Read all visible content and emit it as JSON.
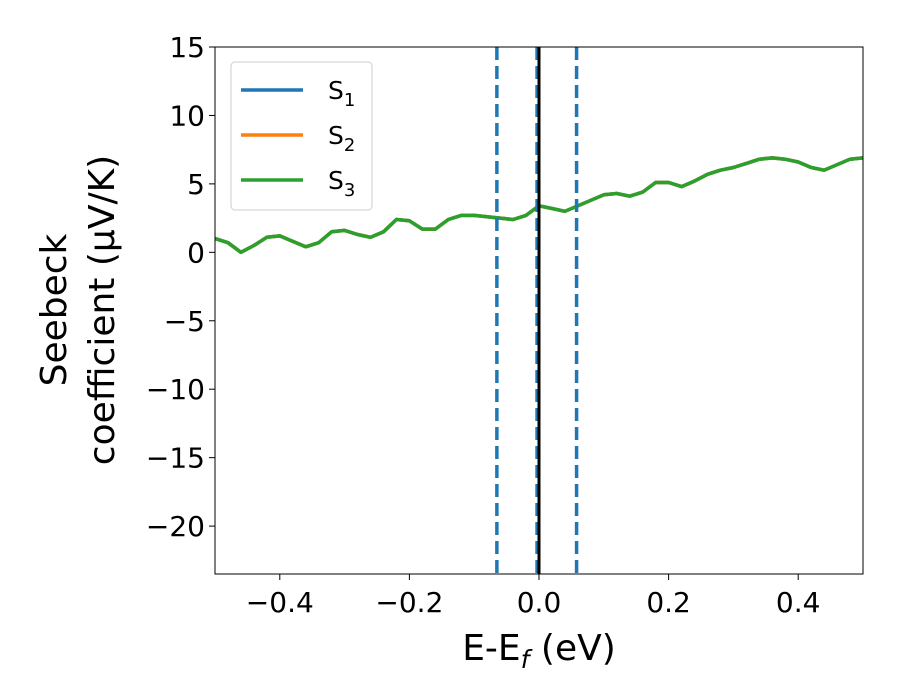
{
  "chart_data": {
    "type": "line",
    "title": "",
    "xlabel": {
      "main": "E-E",
      "sub": "f",
      "tail": " (eV)"
    },
    "ylabel": {
      "line1": "Seebeck",
      "line2": "coefficient  (μV/K)"
    },
    "xlim": [
      -0.5,
      0.5
    ],
    "ylim": [
      -23.5,
      15
    ],
    "xticks": [
      -0.4,
      -0.2,
      0.0,
      0.2,
      0.4
    ],
    "xtick_labels": [
      "−0.4",
      "−0.2",
      "0.0",
      "0.2",
      "0.4"
    ],
    "yticks": [
      15,
      10,
      5,
      0,
      -5,
      -10,
      -15,
      -20
    ],
    "ytick_labels": [
      "15",
      "10",
      "5",
      "0",
      "−5",
      "−10",
      "−15",
      "−20"
    ],
    "grid": false,
    "legend": {
      "placement": "top-left",
      "entries": [
        {
          "base": "S",
          "sub": "1",
          "color": "#1f77b4"
        },
        {
          "base": "S",
          "sub": "2",
          "color": "#ff7f0e"
        },
        {
          "base": "S",
          "sub": "3",
          "color": "#2ca02c"
        }
      ]
    },
    "x": [
      -0.5,
      -0.48,
      -0.46,
      -0.44,
      -0.42,
      -0.4,
      -0.38,
      -0.36,
      -0.34,
      -0.32,
      -0.3,
      -0.28,
      -0.26,
      -0.24,
      -0.22,
      -0.2,
      -0.18,
      -0.16,
      -0.14,
      -0.12,
      -0.1,
      -0.08,
      -0.06,
      -0.04,
      -0.02,
      0.0,
      0.02,
      0.04,
      0.06,
      0.08,
      0.1,
      0.12,
      0.14,
      0.16,
      0.18,
      0.2,
      0.22,
      0.24,
      0.26,
      0.28,
      0.3,
      0.32,
      0.34,
      0.36,
      0.38,
      0.4,
      0.42,
      0.44,
      0.46,
      0.48,
      0.5
    ],
    "series": [
      {
        "name": "S1",
        "color": "#1f77b4",
        "values": [
          1.0,
          0.7,
          0.0,
          0.5,
          1.1,
          1.2,
          0.8,
          0.4,
          0.7,
          1.5,
          1.6,
          1.3,
          1.1,
          1.5,
          2.4,
          2.3,
          1.7,
          1.7,
          2.4,
          2.7,
          2.7,
          2.6,
          2.5,
          2.4,
          2.7,
          3.4,
          3.2,
          3.0,
          3.4,
          3.8,
          4.2,
          4.3,
          4.1,
          4.4,
          5.1,
          5.1,
          4.8,
          5.2,
          5.7,
          6.0,
          6.2,
          6.5,
          6.8,
          6.9,
          6.8,
          6.6,
          6.2,
          6.0,
          6.4,
          6.8,
          6.9
        ]
      },
      {
        "name": "S2",
        "color": "#ff7f0e",
        "values": [
          1.0,
          0.7,
          0.0,
          0.5,
          1.1,
          1.2,
          0.8,
          0.4,
          0.7,
          1.5,
          1.6,
          1.3,
          1.1,
          1.5,
          2.4,
          2.3,
          1.7,
          1.7,
          2.4,
          2.7,
          2.7,
          2.6,
          2.5,
          2.4,
          2.7,
          3.4,
          3.2,
          3.0,
          3.4,
          3.8,
          4.2,
          4.3,
          4.1,
          4.4,
          5.1,
          5.1,
          4.8,
          5.2,
          5.7,
          6.0,
          6.2,
          6.5,
          6.8,
          6.9,
          6.8,
          6.6,
          6.2,
          6.0,
          6.4,
          6.8,
          6.9
        ]
      },
      {
        "name": "S3",
        "color": "#2ca02c",
        "values": [
          1.0,
          0.7,
          0.0,
          0.5,
          1.1,
          1.2,
          0.8,
          0.4,
          0.7,
          1.5,
          1.6,
          1.3,
          1.1,
          1.5,
          2.4,
          2.3,
          1.7,
          1.7,
          2.4,
          2.7,
          2.7,
          2.6,
          2.5,
          2.4,
          2.7,
          3.4,
          3.2,
          3.0,
          3.4,
          3.8,
          4.2,
          4.3,
          4.1,
          4.4,
          5.1,
          5.1,
          4.8,
          5.2,
          5.7,
          6.0,
          6.2,
          6.5,
          6.8,
          6.9,
          6.8,
          6.6,
          6.2,
          6.0,
          6.4,
          6.8,
          6.9
        ]
      }
    ],
    "vlines": [
      {
        "x": -0.065,
        "color": "#1f77b4",
        "style": "dashed"
      },
      {
        "x": -0.003,
        "color": "#1f77b4",
        "style": "dashed"
      },
      {
        "x": 0.058,
        "color": "#1f77b4",
        "style": "dashed"
      },
      {
        "x": 0.0,
        "color": "#000000",
        "style": "solid"
      }
    ]
  }
}
